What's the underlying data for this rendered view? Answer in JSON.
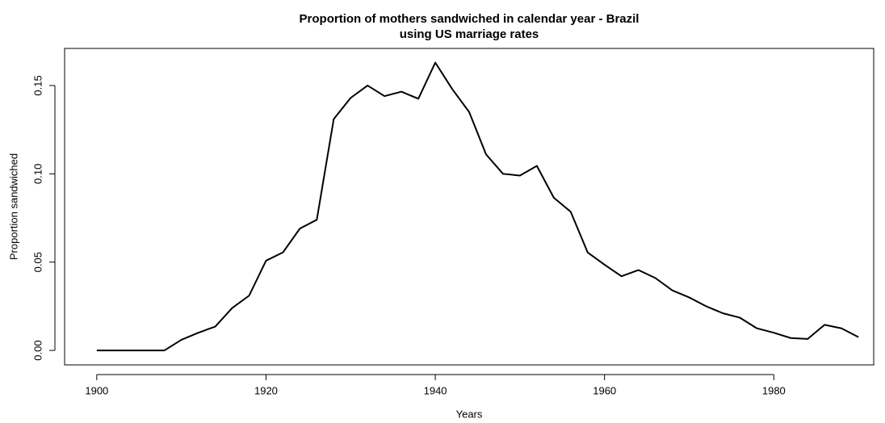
{
  "chart_data": {
    "type": "line",
    "title": "Proportion of mothers sandwiched in calendar year - Brazil",
    "subtitle": "using US marriage rates",
    "x_label": "Years",
    "y_label": "Proportion sandwiched",
    "x": [
      1900,
      1902,
      1904,
      1906,
      1908,
      1910,
      1912,
      1914,
      1916,
      1918,
      1920,
      1922,
      1924,
      1926,
      1928,
      1930,
      1932,
      1934,
      1936,
      1938,
      1940,
      1942,
      1944,
      1946,
      1948,
      1950,
      1952,
      1954,
      1956,
      1958,
      1960,
      1962,
      1964,
      1966,
      1968,
      1970,
      1972,
      1974,
      1976,
      1978,
      1980,
      1982,
      1984,
      1986,
      1988,
      1990
    ],
    "series": [
      {
        "name": "Proportion sandwiched",
        "color": "#000000",
        "values": [
          0,
          0,
          0,
          0,
          0,
          0.006,
          0.01,
          0.0135,
          0.024,
          0.031,
          0.0508,
          0.0555,
          0.069,
          0.074,
          0.131,
          0.143,
          0.15,
          0.144,
          0.1465,
          0.1425,
          0.163,
          0.148,
          0.135,
          0.111,
          0.1,
          0.099,
          0.1045,
          0.0865,
          0.0785,
          0.0555,
          0.0485,
          0.042,
          0.0455,
          0.041,
          0.034,
          0.03,
          0.025,
          0.021,
          0.0185,
          0.0125,
          0.01,
          0.007,
          0.0065,
          0.0145,
          0.0125,
          0.0075
        ]
      }
    ],
    "xlim": [
      1896.2,
      1991.8
    ],
    "ylim": [
      -0.0082,
      0.171
    ],
    "xticks": [
      1900,
      1920,
      1940,
      1960,
      1980
    ],
    "yticks": [
      {
        "value": 0,
        "label": "0.00"
      },
      {
        "value": 0.05,
        "label": "0.05"
      },
      {
        "value": 0.1,
        "label": "0.10"
      },
      {
        "value": 0.15,
        "label": "0.15"
      }
    ]
  }
}
